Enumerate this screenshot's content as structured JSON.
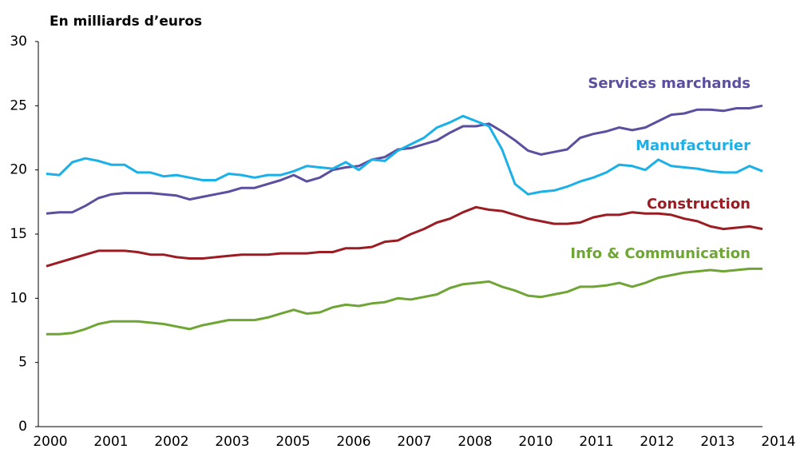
{
  "chart_data": {
    "type": "line",
    "title": "En milliards d’euros",
    "x_labels": [
      "2000",
      "2001",
      "2002",
      "2003",
      "2005",
      "2006",
      "2007",
      "2008",
      "2010",
      "2011",
      "2012",
      "2013",
      "2014"
    ],
    "ylim": [
      0,
      30
    ],
    "yticks": [
      0,
      5,
      10,
      15,
      20,
      25,
      30
    ],
    "grid": false,
    "series": [
      {
        "name": "Services marchands",
        "color": "#5b4fa0",
        "values": [
          16.6,
          16.7,
          16.7,
          17.2,
          17.8,
          18.1,
          18.2,
          18.2,
          18.2,
          18.1,
          18.0,
          17.7,
          17.9,
          18.1,
          18.3,
          18.6,
          18.6,
          18.9,
          19.2,
          19.6,
          19.1,
          19.4,
          20.0,
          20.2,
          20.3,
          20.8,
          21.0,
          21.6,
          21.7,
          22.0,
          22.3,
          22.9,
          23.4,
          23.4,
          23.6,
          23.0,
          22.3,
          21.5,
          21.2,
          21.4,
          21.6,
          22.5,
          22.8,
          23.0,
          23.3,
          23.1,
          23.3,
          23.8,
          24.3,
          24.4,
          24.7,
          24.7,
          24.6,
          24.8,
          24.8,
          25.0
        ]
      },
      {
        "name": "Manufacturier",
        "color": "#1ab0e8",
        "values": [
          19.7,
          19.6,
          20.6,
          20.9,
          20.7,
          20.4,
          20.4,
          19.8,
          19.8,
          19.5,
          19.6,
          19.4,
          19.2,
          19.2,
          19.7,
          19.6,
          19.4,
          19.6,
          19.6,
          19.9,
          20.3,
          20.2,
          20.1,
          20.6,
          20.0,
          20.8,
          20.7,
          21.5,
          22.0,
          22.5,
          23.3,
          23.7,
          24.2,
          23.8,
          23.4,
          21.6,
          18.9,
          18.1,
          18.3,
          18.4,
          18.7,
          19.1,
          19.4,
          19.8,
          20.4,
          20.3,
          20.0,
          20.8,
          20.3,
          20.2,
          20.1,
          19.9,
          19.8,
          19.8,
          20.3,
          19.9
        ]
      },
      {
        "name": "Construction",
        "color": "#9b1c22",
        "values": [
          12.5,
          12.8,
          13.1,
          13.4,
          13.7,
          13.7,
          13.7,
          13.6,
          13.4,
          13.4,
          13.2,
          13.1,
          13.1,
          13.2,
          13.3,
          13.4,
          13.4,
          13.4,
          13.5,
          13.5,
          13.5,
          13.6,
          13.6,
          13.9,
          13.9,
          14.0,
          14.4,
          14.5,
          15.0,
          15.4,
          15.9,
          16.2,
          16.7,
          17.1,
          16.9,
          16.8,
          16.5,
          16.2,
          16.0,
          15.8,
          15.8,
          15.9,
          16.3,
          16.5,
          16.5,
          16.7,
          16.6,
          16.6,
          16.5,
          16.2,
          16.0,
          15.6,
          15.4,
          15.5,
          15.6,
          15.4
        ]
      },
      {
        "name": "Info & Communication",
        "color": "#6fa535",
        "values": [
          7.2,
          7.2,
          7.3,
          7.6,
          8.0,
          8.2,
          8.2,
          8.2,
          8.1,
          8.0,
          7.8,
          7.6,
          7.9,
          8.1,
          8.3,
          8.3,
          8.3,
          8.5,
          8.8,
          9.1,
          8.8,
          8.9,
          9.3,
          9.5,
          9.4,
          9.6,
          9.7,
          10.0,
          9.9,
          10.1,
          10.3,
          10.8,
          11.1,
          11.2,
          11.3,
          10.9,
          10.6,
          10.2,
          10.1,
          10.3,
          10.5,
          10.9,
          10.9,
          11.0,
          11.2,
          10.9,
          11.2,
          11.6,
          11.8,
          12.0,
          12.1,
          12.2,
          12.1,
          12.2,
          12.3,
          12.3
        ]
      }
    ]
  }
}
